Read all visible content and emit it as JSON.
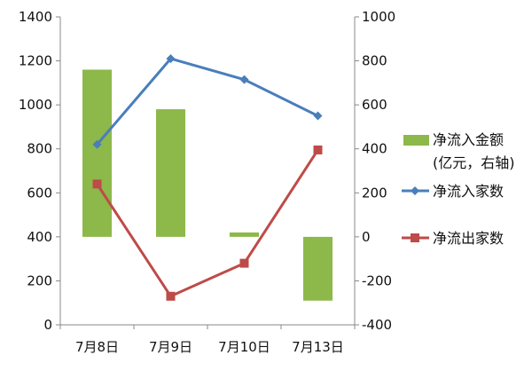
{
  "chart_data": {
    "type": "bar",
    "title": "",
    "categories": [
      "7月8日",
      "7月9日",
      "7月10日",
      "7月13日"
    ],
    "left_axis": {
      "ylim": [
        0,
        1400
      ],
      "ticks": [
        "0",
        "200",
        "400",
        "600",
        "800",
        "1000",
        "1200",
        "1400"
      ]
    },
    "right_axis": {
      "ylim": [
        -400,
        1000
      ],
      "ticks": [
        "-400",
        "-200",
        "0",
        "200",
        "400",
        "600",
        "800",
        "1000"
      ]
    },
    "grid": false,
    "legend": "right",
    "series": [
      {
        "name": "净流入金额",
        "name_line2": "(亿元，右轴)",
        "kind": "bar",
        "axis": "right",
        "color": "#8DB84A",
        "values": [
          760,
          580,
          20,
          -290
        ]
      },
      {
        "name": "净流入家数",
        "kind": "line",
        "axis": "left",
        "color": "#4A7EBB",
        "marker": "diamond",
        "values": [
          820,
          1210,
          1115,
          950
        ]
      },
      {
        "name": "净流出家数",
        "kind": "line",
        "axis": "left",
        "color": "#BE4B48",
        "marker": "square",
        "values": [
          640,
          130,
          280,
          795
        ]
      }
    ]
  }
}
